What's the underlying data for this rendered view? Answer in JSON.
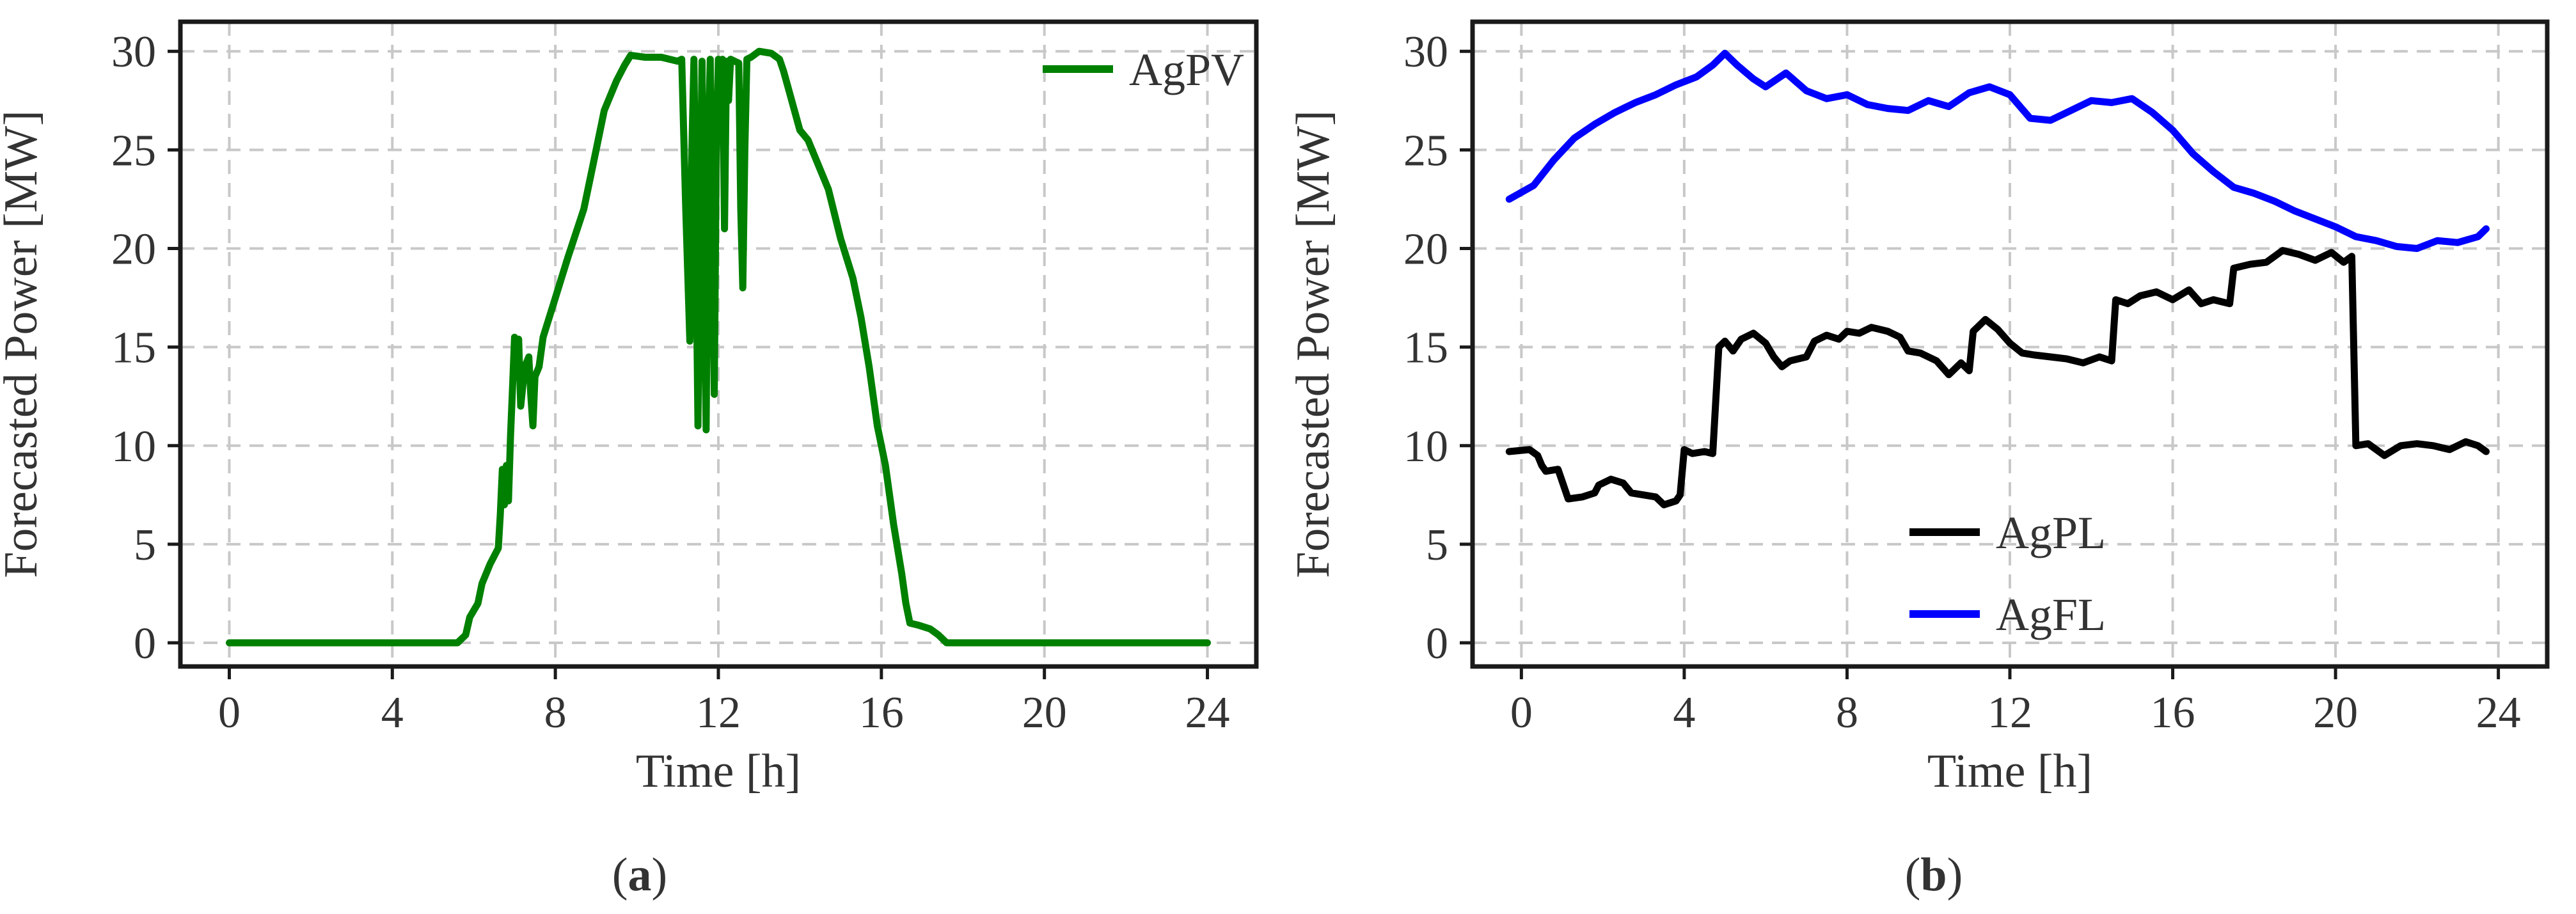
{
  "chart_data": [
    {
      "type": "line",
      "panel_label": "a",
      "xlabel": "Time [h]",
      "ylabel": "Forecasted Power [MW]",
      "xlim": [
        -1.2,
        25.2
      ],
      "ylim": [
        -1.2,
        31.5
      ],
      "xticks": [
        0,
        4,
        8,
        12,
        16,
        20,
        24
      ],
      "yticks": [
        0,
        5,
        10,
        15,
        20,
        25,
        30
      ],
      "grid": true,
      "legend_position": "top-right",
      "series": [
        {
          "name": "AgPV",
          "color": "#008000",
          "points": [
            [
              0,
              0
            ],
            [
              5.6,
              0
            ],
            [
              5.8,
              0.4
            ],
            [
              5.9,
              1.3
            ],
            [
              6.1,
              2.0
            ],
            [
              6.2,
              3.0
            ],
            [
              6.4,
              4.0
            ],
            [
              6.6,
              4.8
            ],
            [
              6.65,
              6.5
            ],
            [
              6.7,
              8.8
            ],
            [
              6.75,
              7.0
            ],
            [
              6.8,
              9.0
            ],
            [
              6.85,
              7.2
            ],
            [
              6.9,
              10.5
            ],
            [
              6.95,
              13.0
            ],
            [
              7.0,
              15.5
            ],
            [
              7.05,
              13.5
            ],
            [
              7.1,
              15.4
            ],
            [
              7.15,
              12.0
            ],
            [
              7.25,
              14.0
            ],
            [
              7.35,
              14.5
            ],
            [
              7.4,
              12.5
            ],
            [
              7.45,
              11.0
            ],
            [
              7.5,
              13.5
            ],
            [
              7.6,
              14.0
            ],
            [
              7.7,
              15.5
            ],
            [
              8.0,
              17.5
            ],
            [
              8.3,
              19.5
            ],
            [
              8.7,
              22.0
            ],
            [
              9.0,
              25.0
            ],
            [
              9.2,
              27.0
            ],
            [
              9.5,
              28.5
            ],
            [
              9.7,
              29.3
            ],
            [
              9.85,
              29.8
            ],
            [
              10.2,
              29.7
            ],
            [
              10.6,
              29.7
            ],
            [
              11.0,
              29.5
            ],
            [
              11.1,
              29.6
            ],
            [
              11.2,
              22.0
            ],
            [
              11.3,
              15.3
            ],
            [
              11.35,
              25.0
            ],
            [
              11.4,
              29.6
            ],
            [
              11.45,
              20.0
            ],
            [
              11.5,
              11.0
            ],
            [
              11.55,
              22.0
            ],
            [
              11.6,
              29.5
            ],
            [
              11.65,
              18.0
            ],
            [
              11.7,
              10.8
            ],
            [
              11.75,
              25.0
            ],
            [
              11.8,
              29.6
            ],
            [
              11.85,
              20.0
            ],
            [
              11.9,
              12.6
            ],
            [
              11.95,
              25.0
            ],
            [
              12.0,
              29.6
            ],
            [
              12.05,
              27.5
            ],
            [
              12.1,
              29.6
            ],
            [
              12.15,
              21.0
            ],
            [
              12.2,
              29.5
            ],
            [
              12.25,
              27.5
            ],
            [
              12.3,
              29.6
            ],
            [
              12.4,
              29.5
            ],
            [
              12.5,
              29.4
            ],
            [
              12.55,
              22.0
            ],
            [
              12.6,
              18.0
            ],
            [
              12.65,
              25.0
            ],
            [
              12.7,
              29.6
            ],
            [
              12.8,
              29.7
            ],
            [
              13.0,
              30.0
            ],
            [
              13.3,
              29.9
            ],
            [
              13.5,
              29.6
            ],
            [
              13.6,
              29.0
            ],
            [
              13.8,
              27.5
            ],
            [
              14.0,
              26.0
            ],
            [
              14.2,
              25.5
            ],
            [
              14.4,
              24.5
            ],
            [
              14.7,
              23.0
            ],
            [
              15.0,
              20.5
            ],
            [
              15.3,
              18.5
            ],
            [
              15.5,
              16.5
            ],
            [
              15.7,
              14.0
            ],
            [
              15.9,
              11.0
            ],
            [
              16.1,
              9.0
            ],
            [
              16.3,
              6.0
            ],
            [
              16.5,
              3.5
            ],
            [
              16.6,
              2.0
            ],
            [
              16.7,
              1.0
            ],
            [
              16.9,
              0.9
            ],
            [
              17.2,
              0.7
            ],
            [
              17.4,
              0.4
            ],
            [
              17.6,
              0
            ],
            [
              24,
              0
            ]
          ]
        }
      ]
    },
    {
      "type": "line",
      "panel_label": "b",
      "xlabel": "Time [h]",
      "ylabel": "Forecasted Power [MW]",
      "xlim": [
        -1.2,
        25.2
      ],
      "ylim": [
        -1.2,
        31.5
      ],
      "xticks": [
        0,
        4,
        8,
        12,
        16,
        20,
        24
      ],
      "yticks": [
        0,
        5,
        10,
        15,
        20,
        25,
        30
      ],
      "grid": true,
      "legend_position": "bottom-center",
      "series": [
        {
          "name": "AgPL",
          "color": "#000000",
          "points": [
            [
              -0.3,
              9.7
            ],
            [
              0.2,
              9.8
            ],
            [
              0.4,
              9.5
            ],
            [
              0.5,
              9.0
            ],
            [
              0.6,
              8.7
            ],
            [
              0.9,
              8.8
            ],
            [
              1.0,
              8.2
            ],
            [
              1.15,
              7.3
            ],
            [
              1.5,
              7.4
            ],
            [
              1.8,
              7.6
            ],
            [
              1.9,
              8.0
            ],
            [
              2.2,
              8.3
            ],
            [
              2.5,
              8.1
            ],
            [
              2.7,
              7.6
            ],
            [
              3.0,
              7.5
            ],
            [
              3.3,
              7.4
            ],
            [
              3.5,
              7.0
            ],
            [
              3.8,
              7.2
            ],
            [
              3.9,
              7.5
            ],
            [
              4.0,
              9.8
            ],
            [
              4.2,
              9.6
            ],
            [
              4.5,
              9.7
            ],
            [
              4.7,
              9.6
            ],
            [
              4.85,
              15.0
            ],
            [
              5.0,
              15.3
            ],
            [
              5.2,
              14.8
            ],
            [
              5.4,
              15.4
            ],
            [
              5.7,
              15.7
            ],
            [
              6.0,
              15.2
            ],
            [
              6.2,
              14.5
            ],
            [
              6.4,
              14.0
            ],
            [
              6.6,
              14.3
            ],
            [
              7.0,
              14.5
            ],
            [
              7.2,
              15.3
            ],
            [
              7.5,
              15.6
            ],
            [
              7.8,
              15.4
            ],
            [
              8.0,
              15.8
            ],
            [
              8.3,
              15.7
            ],
            [
              8.6,
              16.0
            ],
            [
              9.0,
              15.8
            ],
            [
              9.3,
              15.5
            ],
            [
              9.5,
              14.8
            ],
            [
              9.8,
              14.7
            ],
            [
              10.2,
              14.3
            ],
            [
              10.5,
              13.6
            ],
            [
              10.8,
              14.2
            ],
            [
              11.0,
              13.8
            ],
            [
              11.1,
              15.8
            ],
            [
              11.4,
              16.4
            ],
            [
              11.7,
              15.9
            ],
            [
              12.0,
              15.2
            ],
            [
              12.3,
              14.7
            ],
            [
              12.6,
              14.6
            ],
            [
              13.0,
              14.5
            ],
            [
              13.4,
              14.4
            ],
            [
              13.8,
              14.2
            ],
            [
              14.2,
              14.5
            ],
            [
              14.5,
              14.3
            ],
            [
              14.6,
              17.4
            ],
            [
              14.9,
              17.2
            ],
            [
              15.2,
              17.6
            ],
            [
              15.6,
              17.8
            ],
            [
              16.0,
              17.4
            ],
            [
              16.4,
              17.9
            ],
            [
              16.7,
              17.2
            ],
            [
              17.0,
              17.4
            ],
            [
              17.4,
              17.2
            ],
            [
              17.5,
              19.0
            ],
            [
              17.9,
              19.2
            ],
            [
              18.3,
              19.3
            ],
            [
              18.7,
              19.9
            ],
            [
              19.1,
              19.7
            ],
            [
              19.5,
              19.4
            ],
            [
              19.9,
              19.8
            ],
            [
              20.2,
              19.3
            ],
            [
              20.4,
              19.6
            ],
            [
              20.5,
              10.0
            ],
            [
              20.8,
              10.1
            ],
            [
              21.2,
              9.5
            ],
            [
              21.6,
              10.0
            ],
            [
              22.0,
              10.1
            ],
            [
              22.4,
              10.0
            ],
            [
              22.8,
              9.8
            ],
            [
              23.2,
              10.2
            ],
            [
              23.5,
              10.0
            ],
            [
              23.7,
              9.7
            ]
          ]
        },
        {
          "name": "AgFL",
          "color": "#0000ff",
          "points": [
            [
              -0.3,
              22.5
            ],
            [
              0.3,
              23.2
            ],
            [
              0.8,
              24.5
            ],
            [
              1.3,
              25.6
            ],
            [
              1.8,
              26.3
            ],
            [
              2.3,
              26.9
            ],
            [
              2.8,
              27.4
            ],
            [
              3.3,
              27.8
            ],
            [
              3.8,
              28.3
            ],
            [
              4.3,
              28.7
            ],
            [
              4.7,
              29.3
            ],
            [
              5.0,
              29.9
            ],
            [
              5.3,
              29.3
            ],
            [
              5.7,
              28.6
            ],
            [
              6.0,
              28.2
            ],
            [
              6.5,
              28.9
            ],
            [
              7.0,
              28.0
            ],
            [
              7.5,
              27.6
            ],
            [
              8.0,
              27.8
            ],
            [
              8.5,
              27.3
            ],
            [
              9.0,
              27.1
            ],
            [
              9.5,
              27.0
            ],
            [
              10.0,
              27.5
            ],
            [
              10.5,
              27.2
            ],
            [
              11.0,
              27.9
            ],
            [
              11.5,
              28.2
            ],
            [
              12.0,
              27.8
            ],
            [
              12.5,
              26.6
            ],
            [
              13.0,
              26.5
            ],
            [
              13.5,
              27.0
            ],
            [
              14.0,
              27.5
            ],
            [
              14.5,
              27.4
            ],
            [
              15.0,
              27.6
            ],
            [
              15.5,
              26.9
            ],
            [
              16.0,
              26.0
            ],
            [
              16.5,
              24.8
            ],
            [
              17.0,
              23.9
            ],
            [
              17.5,
              23.1
            ],
            [
              18.0,
              22.8
            ],
            [
              18.5,
              22.4
            ],
            [
              19.0,
              21.9
            ],
            [
              19.5,
              21.5
            ],
            [
              20.0,
              21.1
            ],
            [
              20.5,
              20.6
            ],
            [
              21.0,
              20.4
            ],
            [
              21.5,
              20.1
            ],
            [
              22.0,
              20.0
            ],
            [
              22.5,
              20.4
            ],
            [
              23.0,
              20.3
            ],
            [
              23.5,
              20.6
            ],
            [
              23.7,
              21.0
            ]
          ]
        }
      ]
    }
  ],
  "captions": {
    "a": {
      "open": "(",
      "letter": "a",
      "close": ")"
    },
    "b": {
      "open": "(",
      "letter": "b",
      "close": ")"
    }
  }
}
